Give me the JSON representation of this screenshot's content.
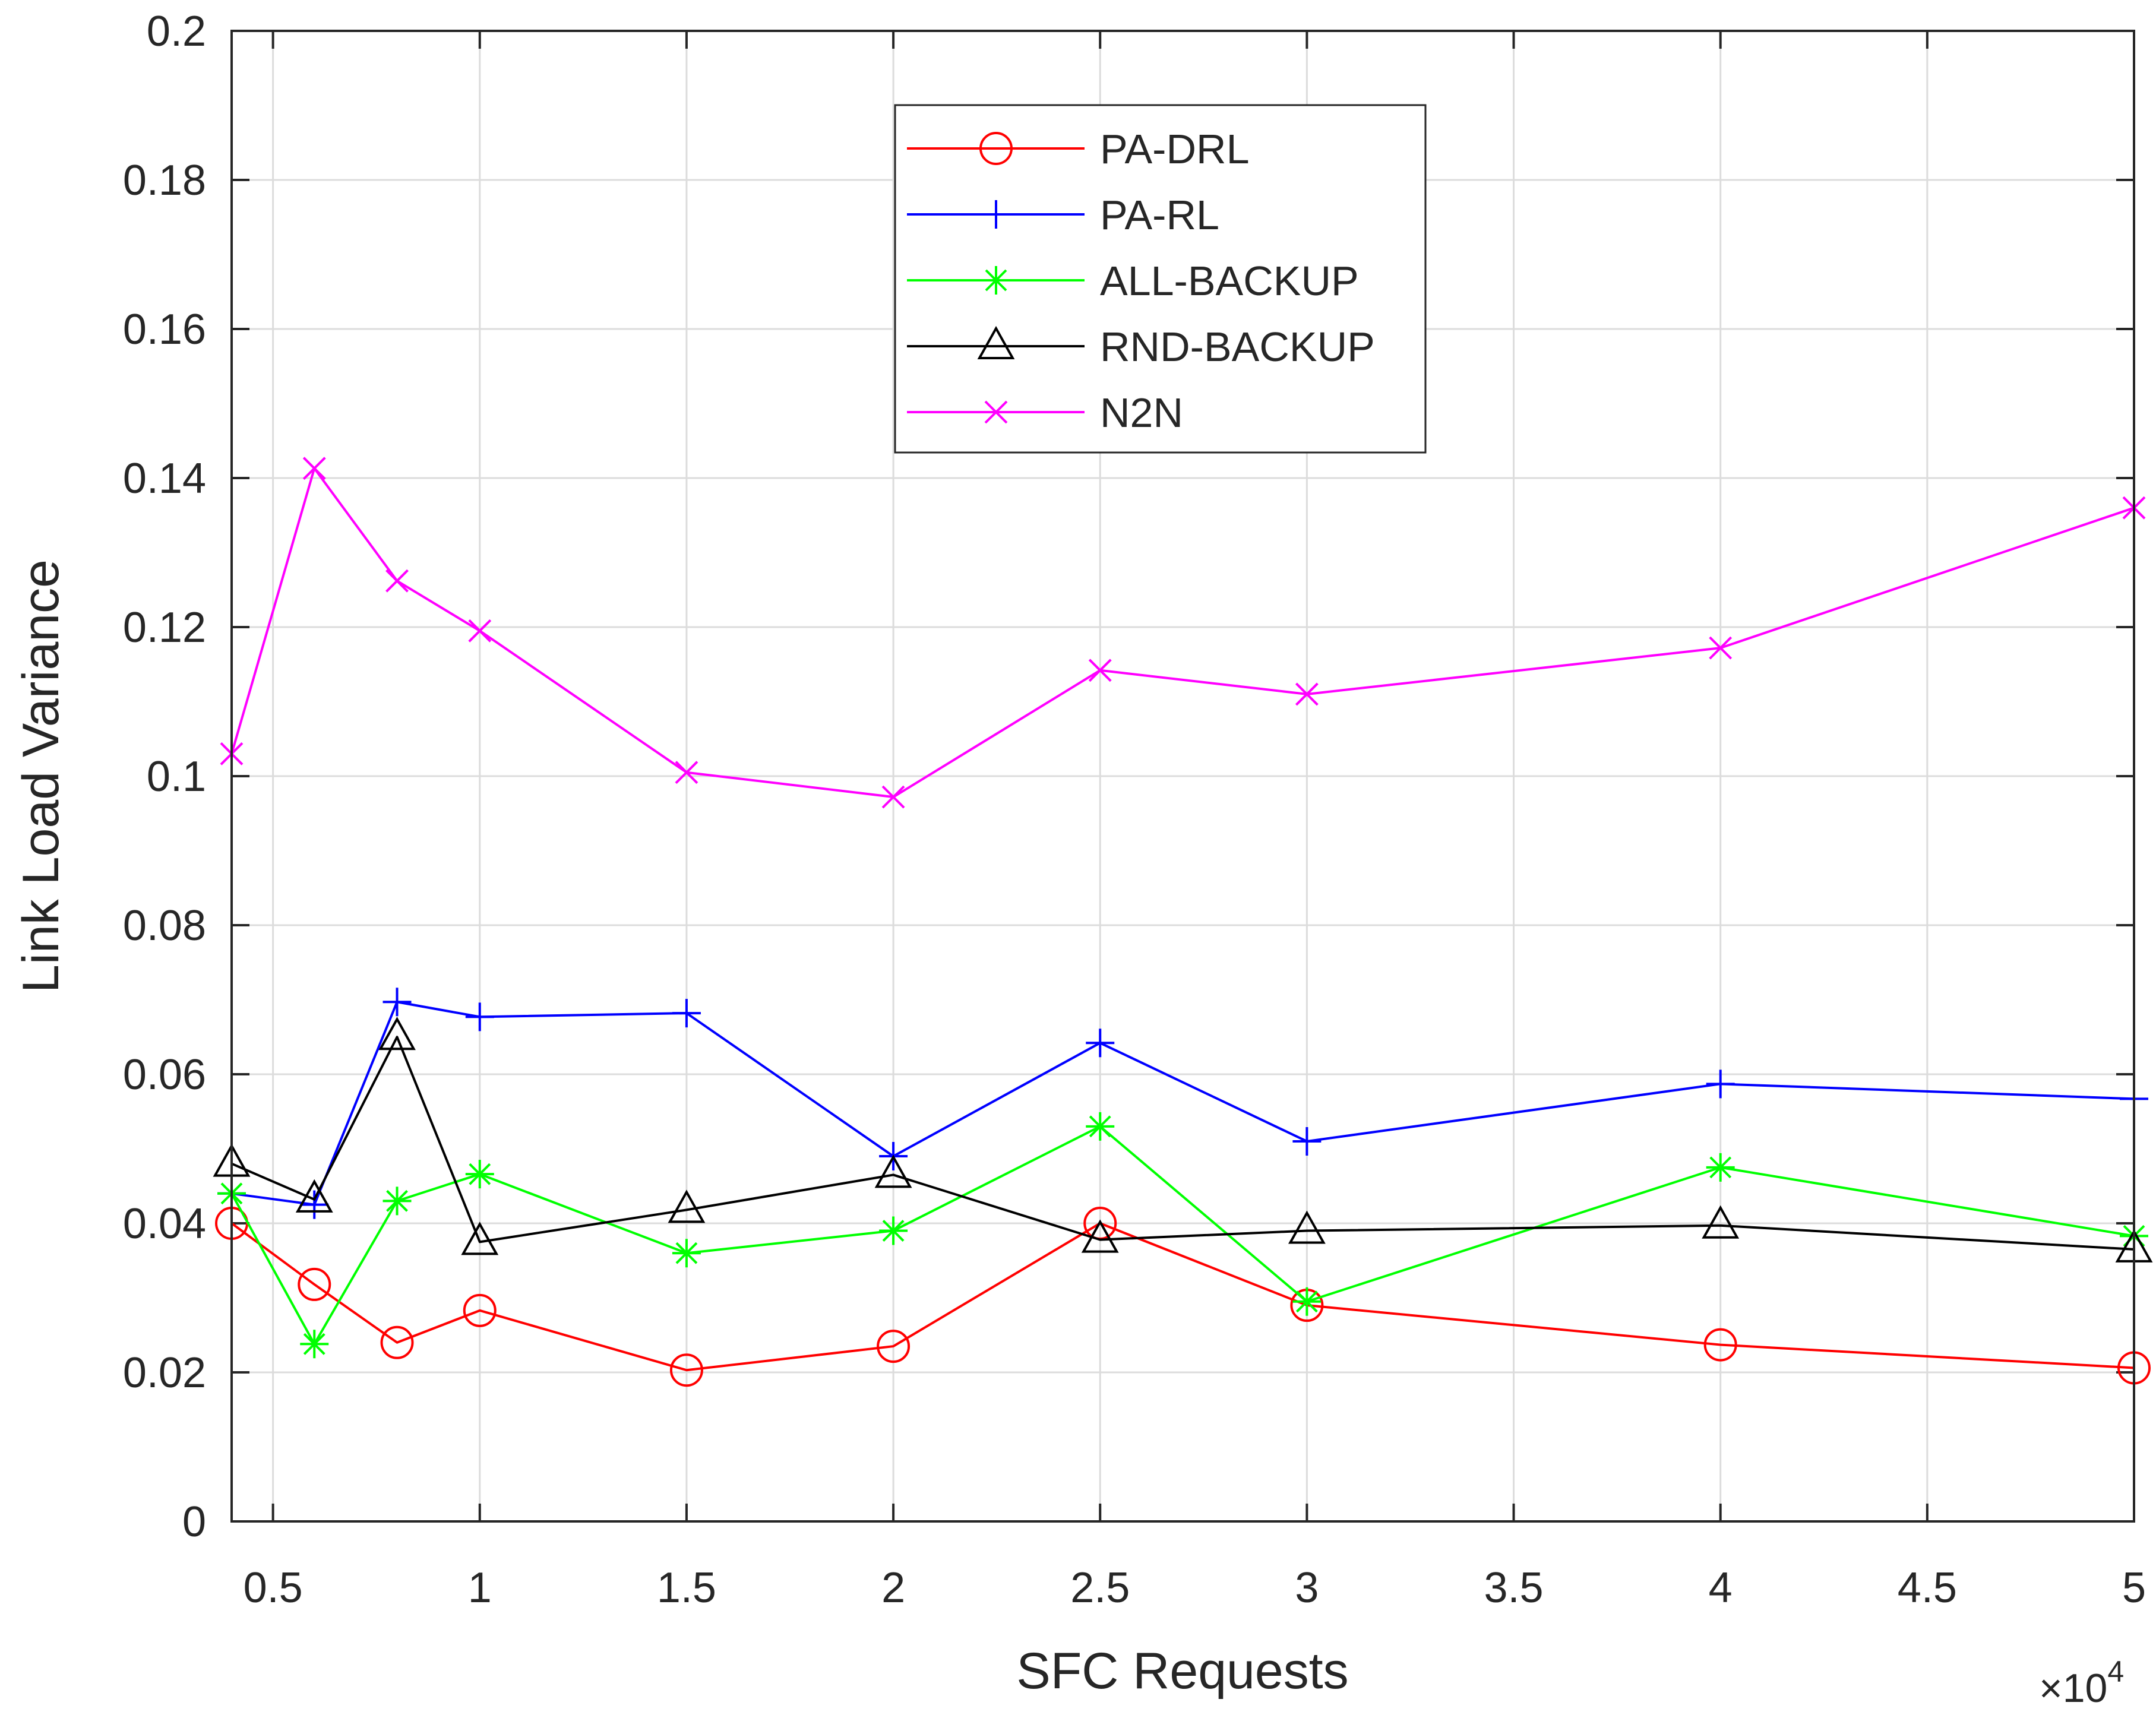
{
  "chart_data": {
    "type": "line",
    "title": "",
    "xlabel": "SFC Requests",
    "ylabel": "Link Load Variance",
    "x_exponent": {
      "base": "10",
      "exponent": "4",
      "prefix": "×"
    },
    "xlim": [
      0.4,
      5.0
    ],
    "ylim": [
      0,
      0.2
    ],
    "grid": true,
    "legend_position": "top-center",
    "x_ticks": [
      0.5,
      1,
      1.5,
      2,
      2.5,
      3,
      3.5,
      4,
      4.5,
      5
    ],
    "x_tick_labels": [
      "0.5",
      "1",
      "1.5",
      "2",
      "2.5",
      "3",
      "3.5",
      "4",
      "4.5",
      "5"
    ],
    "y_ticks": [
      0,
      0.02,
      0.04,
      0.06,
      0.08,
      0.1,
      0.12,
      0.14,
      0.16,
      0.18,
      0.2
    ],
    "y_tick_labels": [
      "0",
      "0.02",
      "0.04",
      "0.06",
      "0.08",
      "0.1",
      "0.12",
      "0.14",
      "0.16",
      "0.18",
      "0.2"
    ],
    "x": [
      0.4,
      0.6,
      0.8,
      1.0,
      1.5,
      2.0,
      2.5,
      3.0,
      4.0,
      5.0
    ],
    "series": [
      {
        "name": "PA-DRL",
        "color": "#ff0000",
        "marker": "circle",
        "values": [
          0.04,
          0.0318,
          0.024,
          0.0283,
          0.0203,
          0.0235,
          0.04,
          0.029,
          0.0237,
          0.0206
        ]
      },
      {
        "name": "PA-RL",
        "color": "#0000ff",
        "marker": "plus",
        "values": [
          0.044,
          0.0425,
          0.0697,
          0.0677,
          0.0682,
          0.049,
          0.0642,
          0.051,
          0.0587,
          0.0567
        ]
      },
      {
        "name": "ALL-BACKUP",
        "color": "#00ff00",
        "marker": "asterisk",
        "values": [
          0.044,
          0.0238,
          0.043,
          0.0466,
          0.036,
          0.039,
          0.053,
          0.0295,
          0.0475,
          0.0383
        ]
      },
      {
        "name": "RND-BACKUP",
        "color": "#000000",
        "marker": "triangle",
        "values": [
          0.048,
          0.0432,
          0.065,
          0.0375,
          0.0418,
          0.0465,
          0.0378,
          0.039,
          0.0397,
          0.0365
        ]
      },
      {
        "name": "N2N",
        "color": "#ff00ff",
        "marker": "x",
        "values": [
          0.103,
          0.1413,
          0.1262,
          0.1195,
          0.1005,
          0.0972,
          0.1142,
          0.111,
          0.1172,
          0.136
        ]
      }
    ]
  }
}
